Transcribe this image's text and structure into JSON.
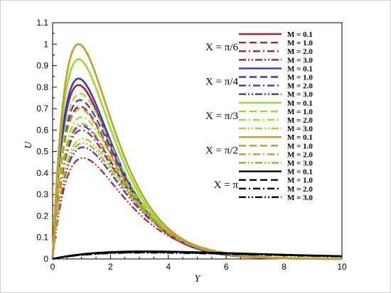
{
  "chart_data": {
    "type": "line",
    "xlabel": "Y",
    "ylabel": "U",
    "xlim": [
      0,
      10
    ],
    "ylim": [
      0,
      1.1
    ],
    "xticks": [
      "0",
      "2",
      "4",
      "6",
      "8",
      "10"
    ],
    "yticks": [
      "0",
      "0.1",
      "0.2",
      "0.3",
      "0.4",
      "0.5",
      "0.6",
      "0.7",
      "0.8",
      "0.9",
      "1",
      "1.1"
    ],
    "grid": false,
    "legend_position": "top-right",
    "groups": [
      {
        "label": "X = π/6",
        "color": "#b22222",
        "series": [
          {
            "name": "M = 0.1",
            "dash": "solid",
            "peak": 0.81
          },
          {
            "name": "M = 1.0",
            "dash": "dash",
            "peak": 0.71
          },
          {
            "name": "M = 2.0",
            "dash": "dashdot",
            "peak": 0.6
          },
          {
            "name": "M = 3.0",
            "dash": "dashdotdot",
            "peak": 0.47
          }
        ]
      },
      {
        "label": "X = π/4",
        "color": "#3535d8",
        "series": [
          {
            "name": "M = 0.1",
            "dash": "solid",
            "peak": 0.84
          },
          {
            "name": "M = 1.0",
            "dash": "dash",
            "peak": 0.74
          },
          {
            "name": "M = 2.0",
            "dash": "dashdot",
            "peak": 0.62
          },
          {
            "name": "M = 3.0",
            "dash": "dashdotdot",
            "peak": 0.52
          }
        ]
      },
      {
        "label": "X = π/3",
        "color": "#8fe02a",
        "series": [
          {
            "name": "M = 0.1",
            "dash": "solid",
            "peak": 0.93
          },
          {
            "name": "M = 1.0",
            "dash": "dash",
            "peak": 0.77
          },
          {
            "name": "M = 2.0",
            "dash": "dashdot",
            "peak": 0.66
          },
          {
            "name": "M = 3.0",
            "dash": "dashdotdot",
            "peak": 0.56
          }
        ]
      },
      {
        "label": "X = π/2",
        "color": "#c89a28",
        "series": [
          {
            "name": "M = 0.1",
            "dash": "solid",
            "peak": 1.0
          },
          {
            "name": "M = 1.0",
            "dash": "dash",
            "peak": 0.7
          },
          {
            "name": "M = 2.0",
            "dash": "dashdot",
            "peak": 0.63
          },
          {
            "name": "M = 3.0",
            "dash": "dashdotdot",
            "peak": 0.54
          }
        ]
      },
      {
        "label": "X = π",
        "color": "#000000",
        "series": [
          {
            "name": "M = 0.1",
            "dash": "solid",
            "peak": 0.035
          },
          {
            "name": "M = 1.0",
            "dash": "dash",
            "peak": 0.033
          },
          {
            "name": "M = 2.0",
            "dash": "dashdot",
            "peak": 0.031
          },
          {
            "name": "M = 3.0",
            "dash": "dashdotdot",
            "peak": 0.029
          }
        ]
      }
    ]
  }
}
